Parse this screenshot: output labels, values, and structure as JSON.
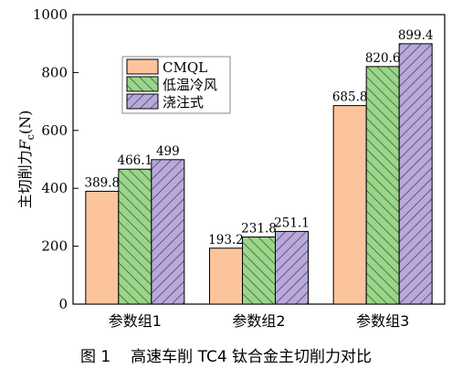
{
  "chart_data": {
    "type": "bar",
    "categories": [
      "参数组1",
      "参数组2",
      "参数组3"
    ],
    "series": [
      {
        "name": "CMQL",
        "values": [
          389.8,
          193.2,
          685.8
        ],
        "color": "#fcc49c",
        "pattern": "solid"
      },
      {
        "name": "低温冷风",
        "values": [
          466.1,
          231.8,
          820.6
        ],
        "color": "#9bd48a",
        "pattern": "hatch"
      },
      {
        "name": "浇注式",
        "values": [
          499,
          251.1,
          899.4
        ],
        "color": "#b8a9d8",
        "pattern": "hatch"
      }
    ],
    "value_labels": [
      [
        "389.8",
        "193.2",
        "685.8"
      ],
      [
        "466.1",
        "231.8",
        "820.6"
      ],
      [
        "499",
        "251.1",
        "899.4"
      ]
    ],
    "ylabel_prefix": "主切削力",
    "ylabel_var": "F",
    "ylabel_sub": "c",
    "ylabel_unit": "(N)",
    "ylim": [
      0,
      1000
    ],
    "yticks": [
      0,
      200,
      400,
      600,
      800,
      1000
    ],
    "legend_position": "top-left",
    "grid": false
  },
  "caption": {
    "number": "图 1",
    "text": "高速车削 TC4 钛合金主切削力对比"
  }
}
